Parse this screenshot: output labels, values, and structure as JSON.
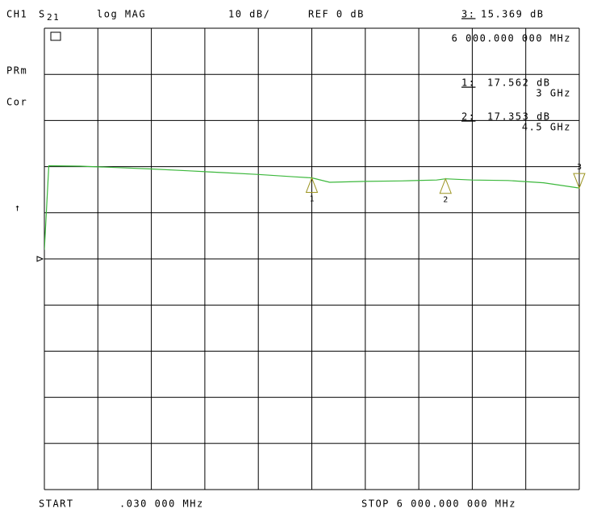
{
  "chart_data": {
    "type": "line",
    "channel": "CH1",
    "param": "S",
    "param_sub": "21",
    "format": "log MAG",
    "scale_label": "10 dB/",
    "ref_label": "REF 0 dB",
    "ref_value": 0,
    "status": [
      "PRm",
      "Cor"
    ],
    "arrow": "↑",
    "start_label": "START",
    "start_value": ".030 000 MHz",
    "stop_label": "STOP 6 000.000 000 MHz",
    "xlim": [
      0.03,
      6000
    ],
    "ylim": [
      -50,
      50
    ],
    "xticks": [
      0.03,
      600.027,
      1200.024,
      1800.021,
      2400.018,
      3000.015,
      3600.012,
      4200.009,
      4800.006,
      5400.003,
      6000
    ],
    "yticks": [
      -50,
      -40,
      -30,
      -20,
      -10,
      0,
      10,
      20,
      30,
      40,
      50
    ],
    "grid": true,
    "x": [
      0.03,
      50,
      400,
      800,
      1200,
      1600,
      2000,
      2400,
      2800,
      3000,
      3200,
      3600,
      4000,
      4400,
      4500,
      4800,
      5200,
      5600,
      6000
    ],
    "series": [
      {
        "color": "#3cb83c",
        "values": [
          2,
          20.2,
          20.1,
          19.8,
          19.5,
          19.1,
          18.7,
          18.3,
          17.8,
          17.562,
          16.6,
          16.8,
          16.9,
          17.1,
          17.353,
          17.1,
          17.0,
          16.5,
          15.369
        ]
      }
    ],
    "marker_color": "#9c9420",
    "markers": [
      {
        "number": "1",
        "tag": "1:",
        "x": 3000,
        "x_label": "3 GHz",
        "value": 17.562,
        "value_label": "17.562 dB",
        "pointer": "up",
        "active": false
      },
      {
        "number": "2",
        "tag": "2:",
        "x": 4500,
        "x_label": "4.5 GHz",
        "value": 17.353,
        "value_label": "17.353 dB",
        "pointer": "up",
        "active": false
      },
      {
        "number": "3",
        "tag": "3:",
        "x": 6000,
        "x_label": "6 000.000 000 MHz",
        "value": 15.369,
        "value_label": "15.369 dB",
        "pointer": "down",
        "active": true
      }
    ]
  }
}
